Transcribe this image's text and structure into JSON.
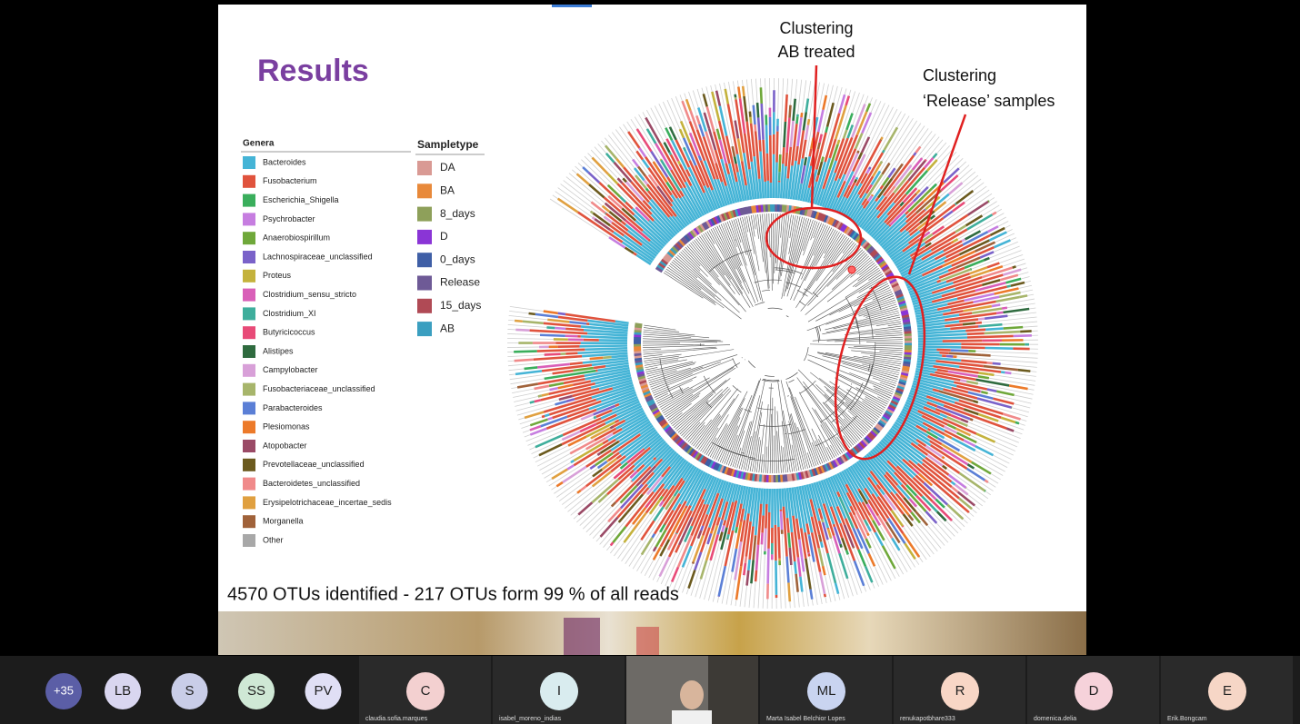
{
  "slide": {
    "title": "Results",
    "genera_heading": "Genera",
    "genera": [
      {
        "name": "Bacteroides",
        "color": "#45b4d6"
      },
      {
        "name": "Fusobacterium",
        "color": "#e0533d"
      },
      {
        "name": "Escherichia_Shigella",
        "color": "#3aae5c"
      },
      {
        "name": "Psychrobacter",
        "color": "#c67de0"
      },
      {
        "name": "Anaerobiospirillum",
        "color": "#6fa83a"
      },
      {
        "name": "Lachnospiraceae_unclassified",
        "color": "#7a62c9"
      },
      {
        "name": "Proteus",
        "color": "#c4b23c"
      },
      {
        "name": "Clostridium_sensu_stricto",
        "color": "#d95fb8"
      },
      {
        "name": "Clostridium_XI",
        "color": "#3fae9c"
      },
      {
        "name": "Butyricicoccus",
        "color": "#e84b78"
      },
      {
        "name": "Alistipes",
        "color": "#2f6b3f"
      },
      {
        "name": "Campylobacter",
        "color": "#d8a0d8"
      },
      {
        "name": "Fusobacteriaceae_unclassified",
        "color": "#a7b56b"
      },
      {
        "name": "Parabacteroides",
        "color": "#5b7fd6"
      },
      {
        "name": "Plesiomonas",
        "color": "#ec7a2a"
      },
      {
        "name": "Atopobacter",
        "color": "#9a4a66"
      },
      {
        "name": "Prevotellaceae_unclassified",
        "color": "#6b5a1e"
      },
      {
        "name": "Bacteroidetes_unclassified",
        "color": "#f08a8a"
      },
      {
        "name": "Erysipelotrichaceae_incertae_sedis",
        "color": "#e0a040"
      },
      {
        "name": "Morganella",
        "color": "#a0623a"
      },
      {
        "name": "Other",
        "color": "#a8a8a8"
      }
    ],
    "sampletype_heading": "Sampletype",
    "sampletypes": [
      {
        "name": "DA",
        "color": "#d99a94"
      },
      {
        "name": "BA",
        "color": "#e8893a"
      },
      {
        "name": "8_days",
        "color": "#8ea05a"
      },
      {
        "name": "D",
        "color": "#8a35d6"
      },
      {
        "name": "0_days",
        "color": "#3f5fa6"
      },
      {
        "name": "Release",
        "color": "#6e5a96"
      },
      {
        "name": "15_days",
        "color": "#b04a55"
      },
      {
        "name": "AB",
        "color": "#3b9fc0"
      }
    ],
    "annotations": [
      {
        "lines": [
          "Clustering",
          "AB treated"
        ]
      },
      {
        "lines": [
          "Clustering",
          "‘Release’ samples"
        ]
      }
    ],
    "footer": "4570 OTUs identified - 217 OTUs form 99 % of all reads"
  },
  "participants": {
    "overflow": "+35",
    "avatars": [
      "LB",
      "S",
      "SS",
      "PV"
    ],
    "tiles": [
      {
        "initials": "C",
        "name": "claudia.sofia.marques"
      },
      {
        "initials": "I",
        "name": "isabel_moreno_indias"
      },
      {
        "initials": null,
        "name": null
      },
      {
        "initials": "ML",
        "name": "Marta Isabel Belchior Lopes"
      },
      {
        "initials": "R",
        "name": "renukapotbhare333"
      },
      {
        "initials": "D",
        "name": "domenica.delia"
      },
      {
        "initials": "E",
        "name": "Erik.Bongcam"
      }
    ]
  }
}
